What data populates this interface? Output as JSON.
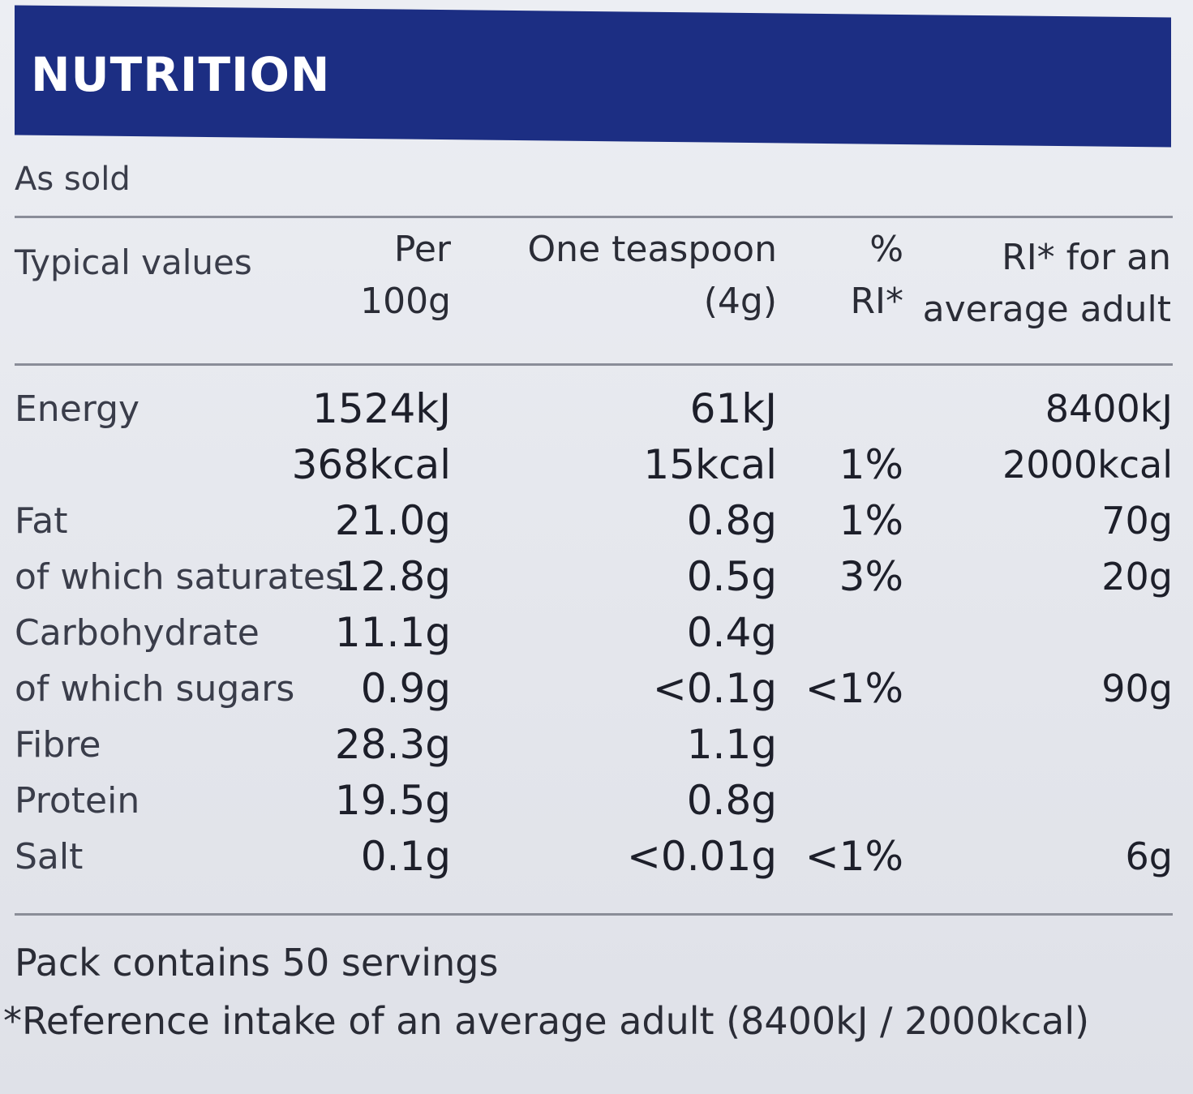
{
  "banner": {
    "title": "NUTRITION"
  },
  "subtitle": "As sold",
  "headers": {
    "typical": "Typical values",
    "per_line1": "Per",
    "per_line2": "100g",
    "tsp_line1": "One teaspoon",
    "tsp_line2": "(4g)",
    "pct_line1": "%",
    "pct_line2": "RI*",
    "ri_line1": "RI* for an",
    "ri_line2": "average adult"
  },
  "rows": [
    {
      "name": "Energy",
      "per100": "1524kJ",
      "tsp": "61kJ",
      "pct": "",
      "ri": "8400kJ"
    },
    {
      "name": "",
      "per100": "368kcal",
      "tsp": "15kcal",
      "pct": "1%",
      "ri": "2000kcal"
    },
    {
      "name": "Fat",
      "per100": "21.0g",
      "tsp": "0.8g",
      "pct": "1%",
      "ri": "70g"
    },
    {
      "name": "of which saturates",
      "per100": "12.8g",
      "tsp": "0.5g",
      "pct": "3%",
      "ri": "20g"
    },
    {
      "name": "Carbohydrate",
      "per100": "11.1g",
      "tsp": "0.4g",
      "pct": "",
      "ri": ""
    },
    {
      "name": "of which sugars",
      "per100": "0.9g",
      "tsp": "<0.1g",
      "pct": "<1%",
      "ri": "90g"
    },
    {
      "name": "Fibre",
      "per100": "28.3g",
      "tsp": "1.1g",
      "pct": "",
      "ri": ""
    },
    {
      "name": "Protein",
      "per100": "19.5g",
      "tsp": "0.8g",
      "pct": "",
      "ri": ""
    },
    {
      "name": "Salt",
      "per100": "0.1g",
      "tsp": "<0.01g",
      "pct": "<1%",
      "ri": "6g"
    }
  ],
  "footer": {
    "servings": "Pack contains 50 servings",
    "reference": "*Reference intake of an average adult (8400kJ / 2000kcal)"
  },
  "colors": {
    "banner": "#1c2e83",
    "text": "#1d1f2a",
    "background": "#e6e7ec"
  }
}
